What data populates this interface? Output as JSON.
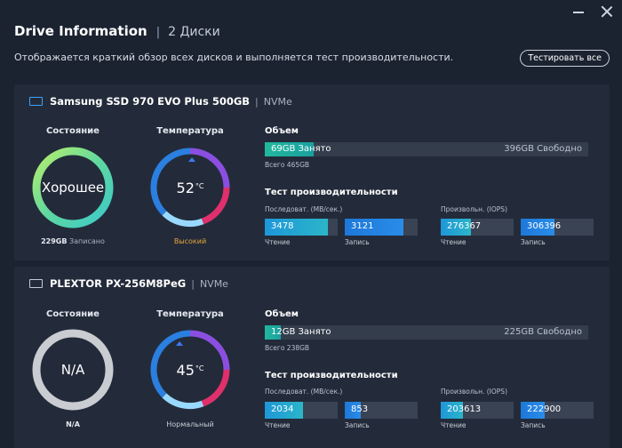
{
  "window": {
    "title": "Drive Information",
    "subtitle": "2 Диски"
  },
  "description": "Отображается краткий обзор всех дисков и выполняется тест производительности.",
  "test_all_label": "Тестировать все",
  "labels": {
    "state": "Состояние",
    "temp": "Температура",
    "volume": "Объем",
    "perf": "Тест производительности",
    "seq": "Последоват. (МВ/сек.)",
    "rand": "Произвольн. (IOPS)",
    "read": "Чтение",
    "write": "Запись",
    "temp_unit": "°C"
  },
  "drives": [
    {
      "name": "Samsung SSD 970 EVO Plus 500GB",
      "interface": "NVMe",
      "state": "Хорошее",
      "state_ring_color": "#5fd8c4",
      "written_value": "229GB",
      "written_label": "Записано",
      "temperature": "52",
      "temperature_status": "Высокий",
      "temperature_status_color": "#e7a53a",
      "volume_used": "69GB Занято",
      "volume_free": "396GB Свободно",
      "volume_used_fraction": 0.15,
      "volume_total": "Всего 465GB",
      "seq_read": "3478",
      "seq_read_fraction": 0.87,
      "seq_write": "3121",
      "seq_write_fraction": 0.8,
      "rand_read": "276367",
      "rand_read_fraction": 0.42,
      "rand_write": "306396",
      "rand_write_fraction": 0.46
    },
    {
      "name": "PLEXTOR PX-256M8PeG",
      "interface": "NVMe",
      "state": "N/A",
      "state_ring_color": "#c9ccd1",
      "written_value": "N/A",
      "temperature": "45",
      "temperature_status": "Нормальный",
      "temperature_status_color": "#c6cdd6",
      "volume_used": "12GB Занято",
      "volume_free": "225GB Свободно",
      "volume_used_fraction": 0.05,
      "volume_total": "Всего 238GB",
      "seq_read": "2034",
      "seq_read_fraction": 0.52,
      "seq_write": "853",
      "seq_write_fraction": 0.22,
      "rand_read": "203613",
      "rand_read_fraction": 0.31,
      "rand_write": "222900",
      "rand_write_fraction": 0.33
    }
  ]
}
